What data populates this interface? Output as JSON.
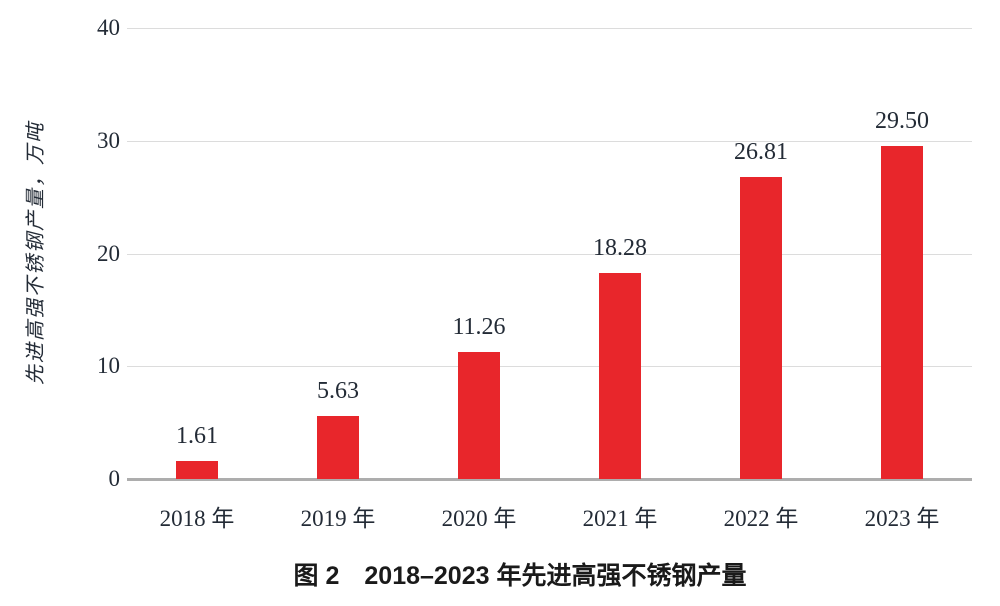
{
  "figure": {
    "caption": "图 2　2018–2023 年先进高强不锈钢产量"
  },
  "chart_data": {
    "type": "bar",
    "title": "",
    "caption": "图 2　2018–2023 年先进高强不锈钢产量",
    "categories": [
      "2018 年",
      "2019 年",
      "2020 年",
      "2021 年",
      "2022 年",
      "2023 年"
    ],
    "values": [
      1.61,
      5.63,
      11.26,
      18.28,
      26.81,
      29.5
    ],
    "value_labels": [
      "1.61",
      "5.63",
      "11.26",
      "18.28",
      "26.81",
      "29.50"
    ],
    "xlabel": "",
    "ylabel": "先进高强不锈钢产量，万吨",
    "ylim": [
      0,
      40
    ],
    "yticks": [
      0,
      10,
      20,
      30,
      40
    ],
    "grid": true,
    "legend_position": "none",
    "colors": {
      "bar": "#e8262b",
      "text": "#232b36",
      "caption": "#1a1a1a",
      "gridline": "#dcdcdc",
      "axis_line": "#adadad",
      "background": "#ffffff"
    }
  }
}
